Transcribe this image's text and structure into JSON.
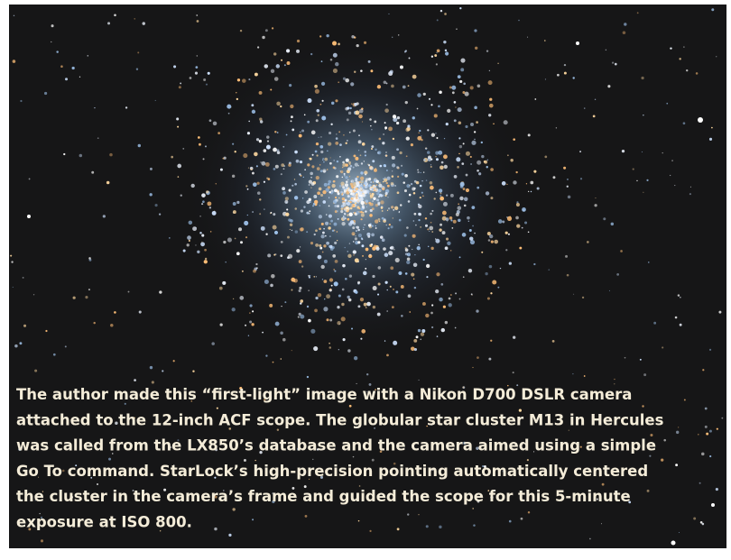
{
  "caption": {
    "lines": [
      "The author made this “first-light” image with a Nikon D700 DSLR camera",
      "attached to the 12-inch ACF scope. The globular star cluster M13 in Hercules",
      "was called from the LX850’s database and the camera aimed using a simple",
      "Go To command. StarLock’s high-precision pointing automatically centered",
      "the cluster in the camera’s frame and guided the scope for this 5-minute",
      "exposure at ISO 800."
    ]
  }
}
